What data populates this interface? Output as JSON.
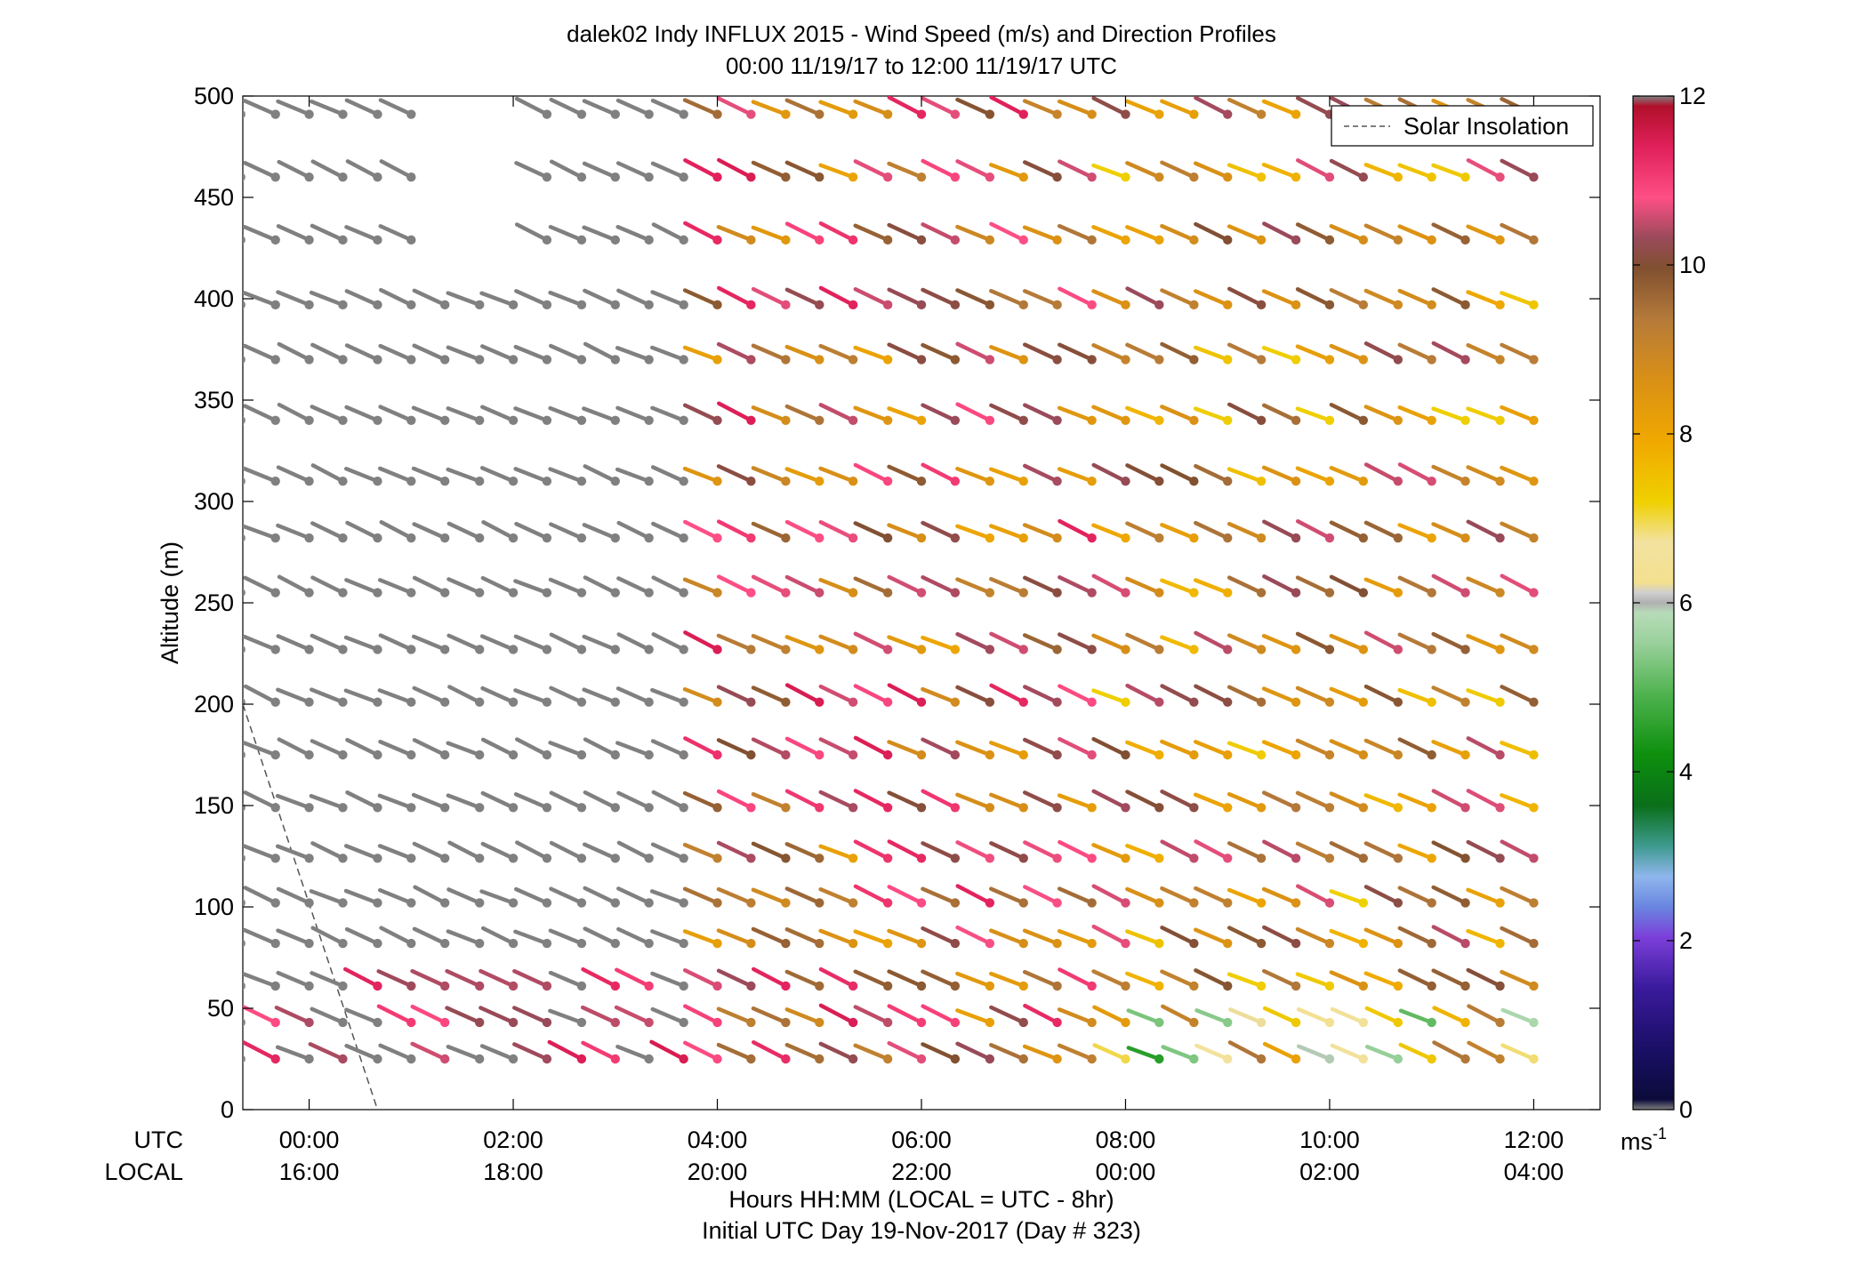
{
  "chart_data": {
    "type": "scatter",
    "title": "dalek02 Indy INFLUX 2015 - Wind Speed (m/s) and Direction Profiles",
    "subtitle": "00:00 11/19/17 to 12:00 11/19/17  UTC",
    "ylabel": "Altitude (m)",
    "xlabel": "Hours HH:MM  (LOCAL = UTC - 8hr)",
    "xlabel2": "Initial UTC Day 19-Nov-2017 (Day # 323)",
    "row_label_utc": "UTC",
    "row_label_local": "LOCAL",
    "legend": {
      "entry": "Solar Insolation",
      "placement": "top-right"
    },
    "xlim_hours": [
      -0.65,
      12.65
    ],
    "ylim": [
      0,
      500
    ],
    "y_ticks": [
      0,
      50,
      100,
      150,
      200,
      250,
      300,
      350,
      400,
      450,
      500
    ],
    "x_ticks_hours": [
      0,
      2,
      4,
      6,
      8,
      10,
      12
    ],
    "x_ticks_utc": [
      "00:00",
      "02:00",
      "04:00",
      "06:00",
      "08:00",
      "10:00",
      "12:00"
    ],
    "x_ticks_local": [
      "16:00",
      "18:00",
      "20:00",
      "22:00",
      "00:00",
      "02:00",
      "04:00"
    ],
    "colorbar": {
      "label": "ms",
      "label_sup": "-1",
      "range": [
        0,
        12
      ],
      "ticks": [
        "0",
        "2",
        "4",
        "6",
        "8",
        "10",
        "12"
      ],
      "stops": [
        [
          0.0,
          "#808080"
        ],
        [
          0.01,
          "#0b0b3a"
        ],
        [
          0.06,
          "#1a0f66"
        ],
        [
          0.12,
          "#3a1a9c"
        ],
        [
          0.17,
          "#7b3fd9"
        ],
        [
          0.2,
          "#6a86e0"
        ],
        [
          0.23,
          "#8fb6ec"
        ],
        [
          0.26,
          "#3e9a8f"
        ],
        [
          0.3,
          "#0a6f1a"
        ],
        [
          0.35,
          "#0d8f0d"
        ],
        [
          0.41,
          "#4fb34f"
        ],
        [
          0.46,
          "#99d09b"
        ],
        [
          0.49,
          "#b7dcb8"
        ],
        [
          0.5,
          "#b0b0b0"
        ],
        [
          0.51,
          "#cfcfcf"
        ],
        [
          0.52,
          "#f3e08e"
        ],
        [
          0.56,
          "#f2e2a0"
        ],
        [
          0.6,
          "#efd000"
        ],
        [
          0.66,
          "#f0a800"
        ],
        [
          0.72,
          "#d99016"
        ],
        [
          0.78,
          "#b57a3a"
        ],
        [
          0.83,
          "#805030"
        ],
        [
          0.86,
          "#9a4a5a"
        ],
        [
          0.9,
          "#ff4f86"
        ],
        [
          0.95,
          "#e0205a"
        ],
        [
          0.99,
          "#b0102a"
        ],
        [
          1.0,
          "#808080"
        ]
      ]
    },
    "solar_insolation": {
      "x_hours": [
        -0.65,
        0.67
      ],
      "y": [
        200,
        0
      ]
    },
    "series_note": "",
    "heights_m": [
      25,
      43,
      61,
      82,
      102,
      124,
      149,
      175,
      201,
      227,
      255,
      282,
      310,
      340,
      370,
      397,
      429,
      460,
      491
    ],
    "times_hours": [
      -0.67,
      -0.33,
      0.0,
      0.33,
      0.67,
      1.0,
      1.33,
      1.67,
      2.0,
      2.33,
      2.67,
      3.0,
      3.33,
      3.67,
      4.0,
      4.33,
      4.67,
      5.0,
      5.33,
      5.67,
      6.0,
      6.33,
      6.67,
      7.0,
      7.33,
      7.67,
      8.0,
      8.33,
      8.67,
      9.0,
      9.33,
      9.67,
      10.0,
      10.33,
      10.67,
      11.0,
      11.33,
      11.67,
      12.0
    ],
    "direction_deg_approx": 300,
    "speed_profiles": [
      {
        "time_range_hours": [
          -0.67,
          4.0
        ],
        "speed_range_ms": [
          6,
          11
        ],
        "note_speed_low_gray": true
      },
      {
        "time_range_hours": [
          4.0,
          8.0
        ],
        "speed_range_ms": [
          7,
          11.5
        ]
      },
      {
        "time_range_hours": [
          8.0,
          12.0
        ],
        "speed_range_ms": [
          3,
          10.5
        ]
      }
    ]
  }
}
